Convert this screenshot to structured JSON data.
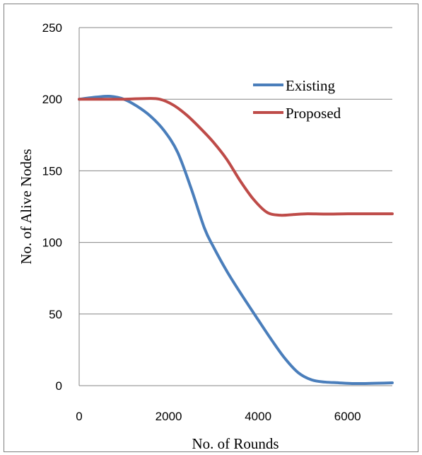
{
  "chart_data": {
    "type": "line",
    "title": "",
    "xlabel": "No. of Rounds",
    "ylabel": "No. of Alive Nodes",
    "xlim": [
      0,
      7000
    ],
    "ylim": [
      0,
      250
    ],
    "x_ticks": [
      "0",
      "2000",
      "4000",
      "6000"
    ],
    "y_ticks": [
      "0",
      "50",
      "100",
      "150",
      "200",
      "250"
    ],
    "grid": "horizontal",
    "legend_position": "top-right",
    "series": [
      {
        "name": "Existing",
        "color": "#4a7ebb",
        "x": [
          0,
          400,
          700,
          1000,
          1300,
          1600,
          1900,
          2200,
          2500,
          2800,
          3000,
          3300,
          3600,
          4000,
          4300,
          4600,
          4900,
          5200,
          5500,
          5800,
          6100,
          6400,
          6700,
          7000
        ],
        "y": [
          200,
          201.5,
          202,
          200,
          195,
          188,
          178,
          163,
          138,
          110,
          97,
          80,
          65,
          46,
          32,
          19,
          9,
          4,
          2.5,
          2,
          1.5,
          1.5,
          1.7,
          2
        ]
      },
      {
        "name": "Proposed",
        "color": "#be4b48",
        "x": [
          0,
          500,
          1000,
          1500,
          1800,
          2100,
          2400,
          2700,
          3000,
          3300,
          3600,
          3900,
          4200,
          4500,
          4800,
          5100,
          5500,
          6000,
          6500,
          7000
        ],
        "y": [
          200,
          200,
          200,
          200.5,
          200,
          196,
          189,
          180,
          170,
          158,
          143,
          130,
          121,
          119,
          119.5,
          120,
          119.8,
          120,
          120,
          120
        ]
      }
    ]
  }
}
